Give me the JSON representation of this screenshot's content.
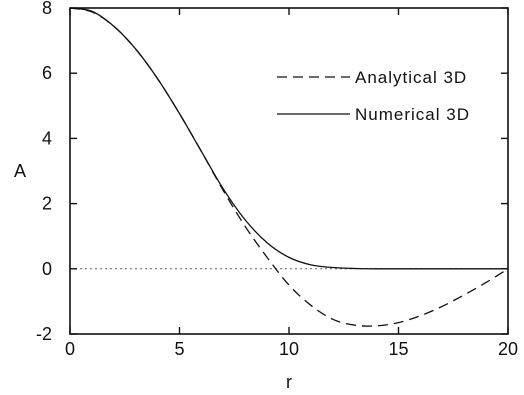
{
  "chart_data": {
    "type": "line",
    "title": "",
    "xlabel": "r",
    "ylabel": "A",
    "xlim": [
      0,
      20
    ],
    "ylim": [
      -2,
      8
    ],
    "xticks": [
      0,
      5,
      10,
      15,
      20
    ],
    "xtick_labels": [
      "0",
      "5",
      "10",
      "15",
      "20"
    ],
    "yticks": [
      -2,
      0,
      2,
      4,
      6,
      8
    ],
    "ytick_labels": [
      "-2",
      "0",
      "2",
      "4",
      "6",
      "8"
    ],
    "grid": false,
    "reference_line": {
      "y": 0,
      "style": "dotted"
    },
    "legend": {
      "placement": "top-right"
    },
    "series": [
      {
        "name": "Analytical 3D",
        "style": "dashed",
        "color": "#111111",
        "x": [
          0,
          1,
          2,
          3,
          4,
          5,
          6,
          7,
          8,
          9,
          10,
          11,
          12,
          13,
          14,
          15,
          16,
          17,
          18,
          19,
          20
        ],
        "y": [
          8.0,
          7.88,
          7.44,
          6.74,
          5.83,
          4.76,
          3.6,
          2.4,
          1.3,
          0.35,
          -0.5,
          -1.12,
          -1.55,
          -1.73,
          -1.75,
          -1.65,
          -1.44,
          -1.15,
          -0.8,
          -0.42,
          0.0
        ]
      },
      {
        "name": "Numerical 3D",
        "style": "solid",
        "color": "#111111",
        "x": [
          0,
          1,
          2,
          3,
          4,
          5,
          6,
          7,
          8,
          9,
          10,
          11,
          12,
          13,
          14,
          15,
          16,
          17,
          18,
          19,
          20
        ],
        "y": [
          8.0,
          7.9,
          7.44,
          6.74,
          5.83,
          4.76,
          3.6,
          2.45,
          1.5,
          0.8,
          0.35,
          0.12,
          0.04,
          0.01,
          0.0,
          0.0,
          0.0,
          0.0,
          0.0,
          0.0,
          0.0
        ]
      }
    ]
  }
}
